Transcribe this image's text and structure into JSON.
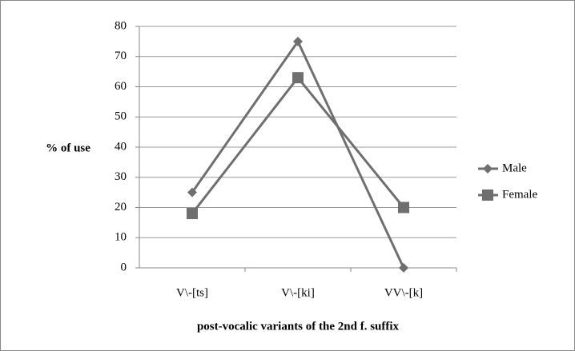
{
  "chart_data": {
    "type": "line",
    "categories": [
      "V\\-[ts]",
      "V\\-[ki]",
      "VV\\-[k]"
    ],
    "series": [
      {
        "name": "Male",
        "color": "#6f6f6f",
        "marker": "diamond",
        "values": [
          25,
          75,
          0
        ]
      },
      {
        "name": "Female",
        "color": "#6f6f6f",
        "marker": "square",
        "values": [
          18,
          63,
          20
        ]
      }
    ],
    "ylabel": "% of use",
    "xlabel": "post-vocalic variants of the 2nd f. suffix",
    "ylim": [
      0,
      80
    ],
    "yticks": [
      0,
      10,
      20,
      30,
      40,
      50,
      60,
      70,
      80
    ],
    "grid": true,
    "legend": "right"
  }
}
